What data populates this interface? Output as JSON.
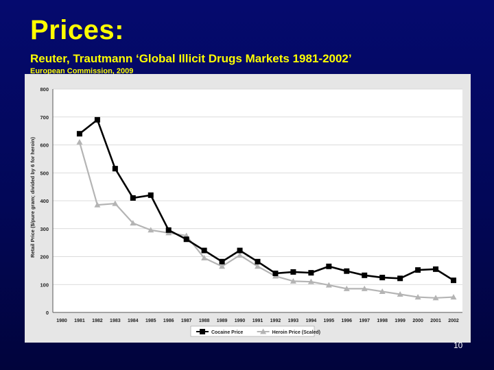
{
  "slide": {
    "title": "Prices:",
    "subtitle": "Reuter, Trautmann ‘Global Illicit Drugs Markets 1981-2002’",
    "source": "European Commission, 2009",
    "page_number": "10"
  },
  "colors": {
    "background": "#03085f",
    "title_text": "#ffff00",
    "chart_background": "#e6e6e6",
    "cocaine_series": "#000000",
    "heroin_series": "#b4b4b4"
  },
  "chart_data": {
    "type": "line",
    "title": "",
    "xlabel": "",
    "ylabel": "Retail Price ($/pure gram; divided by 6 for heroin)",
    "ylim": [
      0,
      800
    ],
    "yticks": [
      0,
      100,
      200,
      300,
      400,
      500,
      600,
      700,
      800
    ],
    "categories": [
      "1980",
      "1981",
      "1982",
      "1983",
      "1984",
      "1985",
      "1986",
      "1987",
      "1988",
      "1989",
      "1990",
      "1991",
      "1992",
      "1993",
      "1994",
      "1995",
      "1996",
      "1997",
      "1998",
      "1999",
      "2000",
      "2001",
      "2002"
    ],
    "grid": true,
    "legend_position": "bottom",
    "series": [
      {
        "name": "Cocaine Price",
        "marker": "square",
        "color": "#000000",
        "values": [
          null,
          640,
          690,
          515,
          410,
          420,
          295,
          262,
          222,
          182,
          222,
          182,
          140,
          145,
          142,
          165,
          148,
          133,
          125,
          122,
          152,
          155,
          115
        ]
      },
      {
        "name": "Heroin Price (Scaled)",
        "marker": "triangle",
        "color": "#b4b4b4",
        "values": [
          null,
          610,
          385,
          390,
          320,
          295,
          285,
          275,
          195,
          165,
          205,
          165,
          130,
          112,
          110,
          98,
          85,
          85,
          75,
          65,
          55,
          52,
          55
        ]
      }
    ]
  }
}
